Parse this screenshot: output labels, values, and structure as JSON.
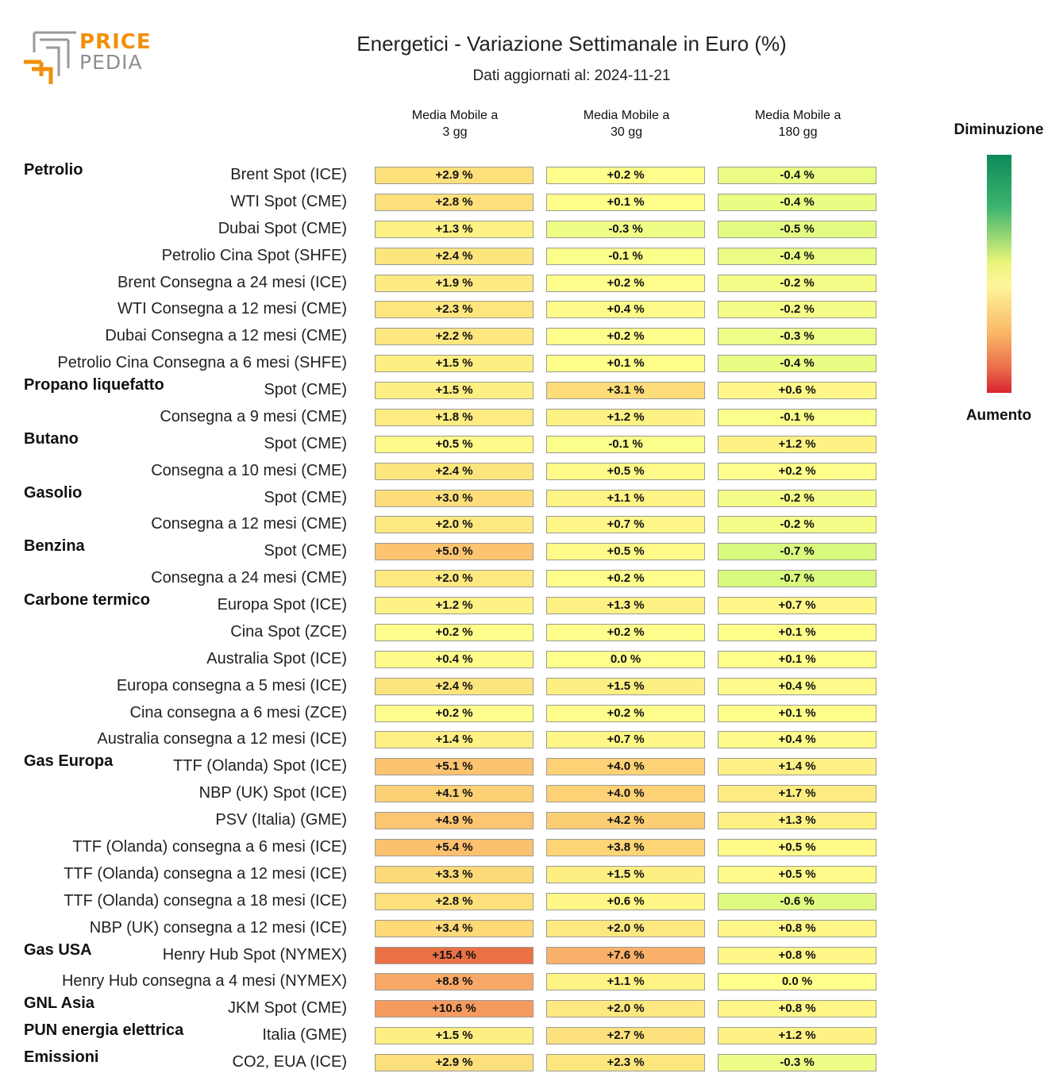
{
  "logo": {
    "price": "PRICE",
    "pedia": "PEDIA"
  },
  "chart_data": {
    "type": "heatmap",
    "title": "Energetici - Variazione Settimanale in Euro (%)",
    "subtitle": "Dati aggiornati al: 2024-11-21",
    "columns": [
      "Media Mobile a\n3 gg",
      "Media Mobile a\n30 gg",
      "Media Mobile a\n180 gg"
    ],
    "unit": "%",
    "legend": {
      "top": "Diminuzione",
      "bottom": "Aumento"
    },
    "groups": [
      {
        "name": "Petrolio",
        "rows": [
          {
            "label": "Brent Spot (ICE)",
            "values": [
              2.9,
              0.2,
              -0.4
            ]
          },
          {
            "label": "WTI Spot (CME)",
            "values": [
              2.8,
              0.1,
              -0.4
            ]
          },
          {
            "label": "Dubai Spot (CME)",
            "values": [
              1.3,
              -0.3,
              -0.5
            ]
          },
          {
            "label": "Petrolio Cina Spot (SHFE)",
            "values": [
              2.4,
              -0.1,
              -0.4
            ]
          },
          {
            "label": "Brent Consegna a 24 mesi (ICE)",
            "values": [
              1.9,
              0.2,
              -0.2
            ]
          },
          {
            "label": "WTI Consegna a 12 mesi (CME)",
            "values": [
              2.3,
              0.4,
              -0.2
            ]
          },
          {
            "label": "Dubai Consegna a 12 mesi (CME)",
            "values": [
              2.2,
              0.2,
              -0.3
            ]
          },
          {
            "label": "Petrolio Cina Consegna a 6 mesi (SHFE)",
            "values": [
              1.5,
              0.1,
              -0.4
            ]
          }
        ]
      },
      {
        "name": "Propano liquefatto",
        "rows": [
          {
            "label": "Spot (CME)",
            "values": [
              1.5,
              3.1,
              0.6
            ]
          },
          {
            "label": "Consegna a 9 mesi (CME)",
            "values": [
              1.8,
              1.2,
              -0.1
            ]
          }
        ]
      },
      {
        "name": "Butano",
        "rows": [
          {
            "label": "Spot (CME)",
            "values": [
              0.5,
              -0.1,
              1.2
            ]
          },
          {
            "label": "Consegna a 10 mesi (CME)",
            "values": [
              2.4,
              0.5,
              0.2
            ]
          }
        ]
      },
      {
        "name": "Gasolio",
        "rows": [
          {
            "label": "Spot (CME)",
            "values": [
              3.0,
              1.1,
              -0.2
            ]
          },
          {
            "label": "Consegna a 12 mesi (CME)",
            "values": [
              2.0,
              0.7,
              -0.2
            ]
          }
        ]
      },
      {
        "name": "Benzina",
        "rows": [
          {
            "label": "Spot (CME)",
            "values": [
              5.0,
              0.5,
              -0.7
            ]
          },
          {
            "label": "Consegna a 24 mesi (CME)",
            "values": [
              2.0,
              0.2,
              -0.7
            ]
          }
        ]
      },
      {
        "name": "Carbone termico",
        "rows": [
          {
            "label": "Europa Spot (ICE)",
            "values": [
              1.2,
              1.3,
              0.7
            ]
          },
          {
            "label": "Cina Spot (ZCE)",
            "values": [
              0.2,
              0.2,
              0.1
            ]
          },
          {
            "label": "Australia Spot (ICE)",
            "values": [
              0.4,
              0.0,
              0.1
            ]
          },
          {
            "label": "Europa consegna a 5 mesi (ICE)",
            "values": [
              2.4,
              1.5,
              0.4
            ]
          },
          {
            "label": "Cina consegna a 6 mesi (ZCE)",
            "values": [
              0.2,
              0.2,
              0.1
            ]
          },
          {
            "label": "Australia consegna a 12 mesi (ICE)",
            "values": [
              1.4,
              0.7,
              0.4
            ]
          }
        ]
      },
      {
        "name": "Gas Europa",
        "rows": [
          {
            "label": "TTF (Olanda) Spot (ICE)",
            "values": [
              5.1,
              4.0,
              1.4
            ]
          },
          {
            "label": "NBP (UK) Spot (ICE)",
            "values": [
              4.1,
              4.0,
              1.7
            ]
          },
          {
            "label": "PSV (Italia) (GME)",
            "values": [
              4.9,
              4.2,
              1.3
            ]
          },
          {
            "label": "TTF (Olanda) consegna a 6 mesi (ICE)",
            "values": [
              5.4,
              3.8,
              0.5
            ]
          },
          {
            "label": "TTF (Olanda) consegna a 12 mesi (ICE)",
            "values": [
              3.3,
              1.5,
              0.5
            ]
          },
          {
            "label": "TTF (Olanda) consegna a 18 mesi (ICE)",
            "values": [
              2.8,
              0.6,
              -0.6
            ]
          },
          {
            "label": "NBP (UK) consegna a 12 mesi (ICE)",
            "values": [
              3.4,
              2.0,
              0.8
            ]
          }
        ]
      },
      {
        "name": "Gas USA",
        "rows": [
          {
            "label": "Henry Hub Spot (NYMEX)",
            "values": [
              15.4,
              7.6,
              0.8
            ]
          },
          {
            "label": "Henry Hub consegna a 4 mesi (NYMEX)",
            "values": [
              8.8,
              1.1,
              0.0
            ]
          }
        ]
      },
      {
        "name": "GNL Asia",
        "rows": [
          {
            "label": "JKM Spot (CME)",
            "values": [
              10.6,
              2.0,
              0.8
            ]
          }
        ]
      },
      {
        "name": "PUN energia elettrica",
        "rows": [
          {
            "label": "Italia (GME)",
            "values": [
              1.5,
              2.7,
              1.2
            ]
          }
        ]
      },
      {
        "name": "Emissioni",
        "rows": [
          {
            "label": "CO2, EUA (ICE)",
            "values": [
              2.9,
              2.3,
              -0.3
            ]
          }
        ]
      }
    ]
  }
}
